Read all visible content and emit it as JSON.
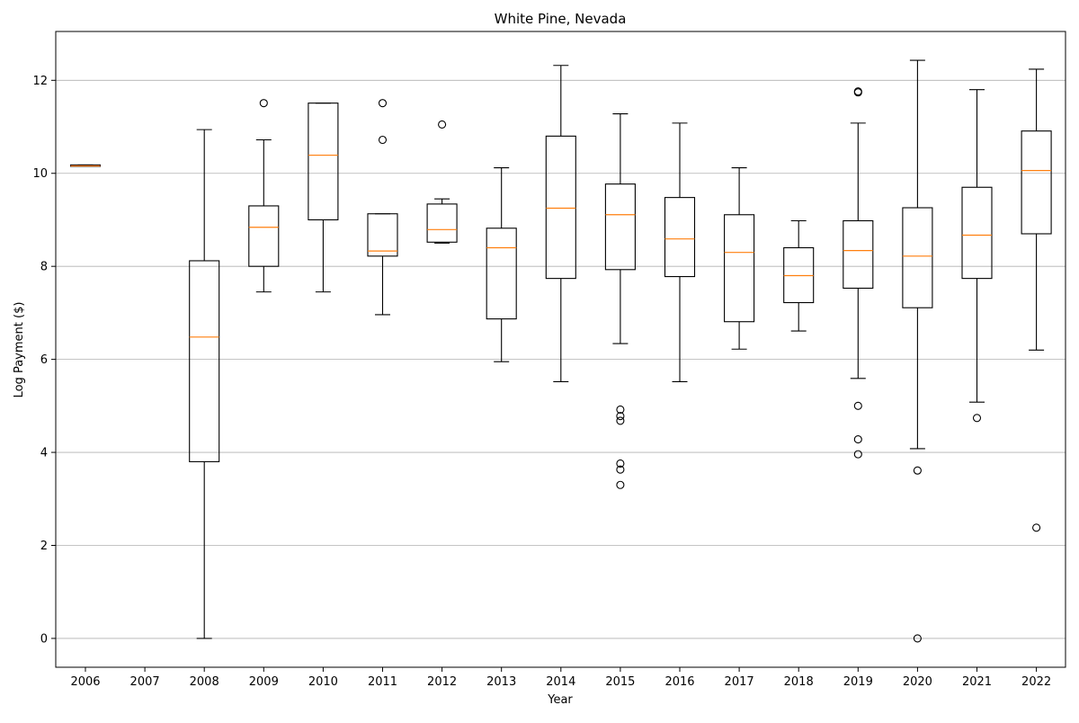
{
  "chart_data": {
    "type": "box",
    "title": "White Pine, Nevada",
    "xlabel": "Year",
    "ylabel": "Log Payment ($)",
    "ylim": [
      -0.62,
      13.05
    ],
    "yticks": [
      0,
      2,
      4,
      6,
      8,
      10,
      12
    ],
    "grid": "horizontal",
    "colors": {
      "box": "#000000",
      "median": "#ff7f0e",
      "grid": "#b0b0b0"
    },
    "categories": [
      "2006",
      "2007",
      "2008",
      "2009",
      "2010",
      "2011",
      "2012",
      "2013",
      "2014",
      "2015",
      "2016",
      "2017",
      "2018",
      "2019",
      "2020",
      "2021",
      "2022"
    ],
    "boxes": [
      {
        "year": "2006",
        "whislo": 10.15,
        "q1": 10.15,
        "med": 10.16,
        "q3": 10.18,
        "whishi": 10.18,
        "fliers": []
      },
      {
        "year": "2007"
      },
      {
        "year": "2008",
        "whislo": 0.0,
        "q1": 3.8,
        "med": 6.48,
        "q3": 8.12,
        "whishi": 10.94,
        "fliers": []
      },
      {
        "year": "2009",
        "whislo": 7.45,
        "q1": 8.0,
        "med": 8.84,
        "q3": 9.3,
        "whishi": 10.72,
        "fliers": [
          11.51
        ]
      },
      {
        "year": "2010",
        "whislo": 7.45,
        "q1": 9.0,
        "med": 10.39,
        "q3": 11.51,
        "whishi": 11.51,
        "fliers": []
      },
      {
        "year": "2011",
        "whislo": 6.96,
        "q1": 8.22,
        "med": 8.33,
        "q3": 9.13,
        "whishi": 9.13,
        "fliers": [
          10.72,
          11.51
        ]
      },
      {
        "year": "2012",
        "whislo": 8.5,
        "q1": 8.52,
        "med": 8.79,
        "q3": 9.34,
        "whishi": 9.45,
        "fliers": [
          11.05
        ]
      },
      {
        "year": "2013",
        "whislo": 5.95,
        "q1": 6.87,
        "med": 8.4,
        "q3": 8.82,
        "whishi": 10.12,
        "fliers": []
      },
      {
        "year": "2014",
        "whislo": 5.52,
        "q1": 7.74,
        "med": 9.25,
        "q3": 10.8,
        "whishi": 12.32,
        "fliers": []
      },
      {
        "year": "2015",
        "whislo": 6.34,
        "q1": 7.93,
        "med": 9.11,
        "q3": 9.77,
        "whishi": 11.28,
        "fliers": [
          4.92,
          4.78,
          4.68,
          3.76,
          3.63,
          3.3
        ]
      },
      {
        "year": "2016",
        "whislo": 5.52,
        "q1": 7.78,
        "med": 8.59,
        "q3": 9.48,
        "whishi": 11.08,
        "fliers": []
      },
      {
        "year": "2017",
        "whislo": 6.22,
        "q1": 6.81,
        "med": 8.3,
        "q3": 9.11,
        "whishi": 10.12,
        "fliers": []
      },
      {
        "year": "2018",
        "whislo": 6.61,
        "q1": 7.22,
        "med": 7.8,
        "q3": 8.4,
        "whishi": 8.98,
        "fliers": []
      },
      {
        "year": "2019",
        "whislo": 5.59,
        "q1": 7.53,
        "med": 8.34,
        "q3": 8.98,
        "whishi": 11.08,
        "fliers": [
          11.74,
          11.76,
          5.0,
          4.28,
          3.96
        ]
      },
      {
        "year": "2020",
        "whislo": 4.08,
        "q1": 7.11,
        "med": 8.22,
        "q3": 9.26,
        "whishi": 12.43,
        "fliers": [
          3.61,
          0.0
        ]
      },
      {
        "year": "2021",
        "whislo": 5.08,
        "q1": 7.74,
        "med": 8.67,
        "q3": 9.7,
        "whishi": 11.8,
        "fliers": [
          4.74
        ]
      },
      {
        "year": "2022",
        "whislo": 6.2,
        "q1": 8.7,
        "med": 10.06,
        "q3": 10.91,
        "whishi": 12.24,
        "fliers": [
          2.38
        ]
      }
    ]
  }
}
